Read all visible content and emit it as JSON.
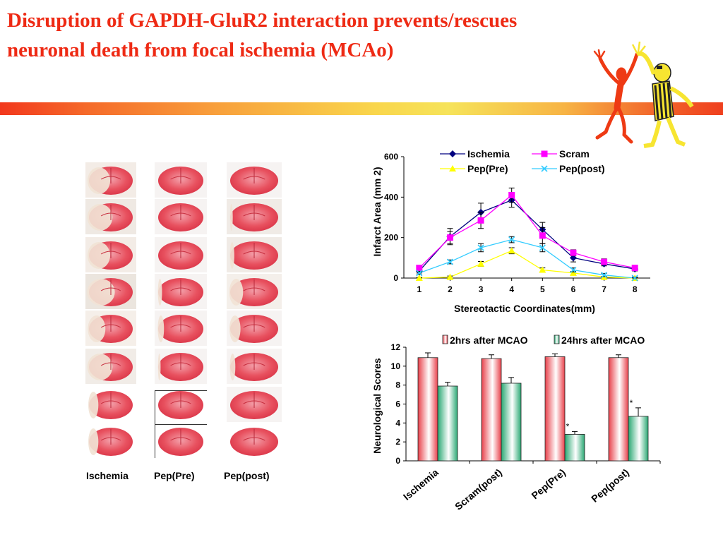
{
  "slide": {
    "title_line1": "Disruption of GAPDH-GluR2 interaction prevents/rescues",
    "title_line2": "neuronal death from focal ischemia (MCAo)"
  },
  "brain_panel": {
    "columns": [
      "Ischemia",
      "Pep(Pre)",
      "Pep(post)"
    ],
    "colors": {
      "tissue_red": "#e8515f",
      "tissue_pink": "#f08090",
      "infarct_white": "#f1e3d5"
    }
  },
  "chart_data": [
    {
      "type": "line",
      "x": [
        1,
        2,
        3,
        4,
        5,
        6,
        7,
        8
      ],
      "xlabel": "Stereotactic Coordinates(mm)",
      "ylabel": "Infarct Area (mm 2)",
      "ylim": [
        0,
        600
      ],
      "yticks": [
        0,
        200,
        400,
        600
      ],
      "xlim": [
        0.5,
        8.5
      ],
      "legend_position": "top",
      "series": [
        {
          "name": "Ischemia",
          "color": "#000080",
          "marker": "diamond",
          "values": [
            35,
            205,
            325,
            385,
            240,
            100,
            70,
            45
          ],
          "errors": [
            10,
            40,
            45,
            35,
            35,
            20,
            10,
            10
          ]
        },
        {
          "name": "Scram",
          "color": "#ff00ff",
          "marker": "square",
          "values": [
            50,
            200,
            285,
            410,
            210,
            125,
            80,
            50
          ],
          "errors": [
            10,
            30,
            40,
            35,
            40,
            15,
            15,
            10
          ]
        },
        {
          "name": "Pep(Pre)",
          "color": "#ffff00",
          "marker": "triangle",
          "values": [
            0,
            5,
            70,
            135,
            40,
            25,
            5,
            0
          ],
          "errors": [
            3,
            5,
            12,
            15,
            10,
            8,
            3,
            3
          ]
        },
        {
          "name": "Pep(post)",
          "color": "#33ccff",
          "marker": "x",
          "values": [
            25,
            80,
            150,
            190,
            150,
            40,
            15,
            0
          ],
          "errors": [
            8,
            10,
            20,
            15,
            20,
            10,
            8,
            5
          ]
        }
      ]
    },
    {
      "type": "bar",
      "categories": [
        "Ischemia",
        "Scram(post)",
        "Pep(Pre)",
        "Pep(post)"
      ],
      "ylabel": "Neurological Scores",
      "ylim": [
        0,
        12
      ],
      "yticks": [
        0,
        2,
        4,
        6,
        8,
        10,
        12
      ],
      "legend_position": "top",
      "series": [
        {
          "name": "2hrs after MCAO",
          "color": "#e8404a",
          "values": [
            10.9,
            10.8,
            11.0,
            10.9
          ],
          "errors": [
            0.5,
            0.4,
            0.3,
            0.3
          ]
        },
        {
          "name": "24hrs after MCAO",
          "color": "#2aa873",
          "values": [
            7.9,
            8.2,
            2.8,
            4.7
          ],
          "errors": [
            0.4,
            0.6,
            0.3,
            0.9
          ]
        }
      ],
      "annotations": [
        {
          "category": "Pep(Pre)",
          "series": "24hrs after MCAO",
          "text": "*"
        },
        {
          "category": "Pep(post)",
          "series": "24hrs after MCAO",
          "text": "*"
        }
      ]
    }
  ]
}
